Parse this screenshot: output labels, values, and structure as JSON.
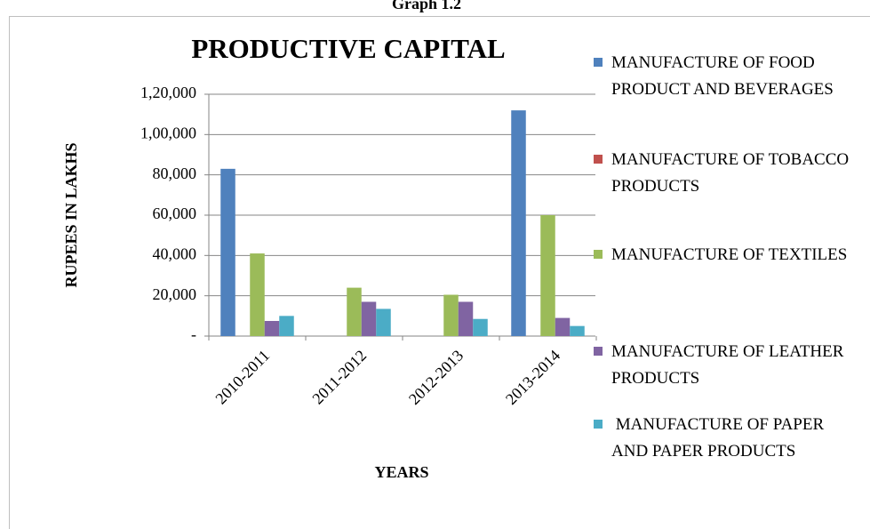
{
  "header": "Graph 1.2",
  "chart_data": {
    "type": "bar",
    "title": "PRODUCTIVE CAPITAL",
    "x_label": "YEARS",
    "y_label": "RUPEES  IN  LAKHS",
    "categories": [
      "2010-2011",
      "2011-2012",
      "2012-2013",
      "2013-2014"
    ],
    "series": [
      {
        "name": "MANUFACTURE OF FOOD PRODUCT AND BEVERAGES",
        "color": "#4f81bd",
        "values": [
          83000,
          0,
          0,
          112000
        ]
      },
      {
        "name": "MANUFACTURE OF TOBACCO PRODUCTS",
        "color": "#c0504d",
        "values": [
          0,
          0,
          0,
          0
        ]
      },
      {
        "name": "MANUFACTURE OF TEXTILES",
        "color": "#9bbb59",
        "values": [
          41000,
          24000,
          20500,
          60000
        ]
      },
      {
        "name": "MANUFACTURE OF LEATHER PRODUCTS",
        "color": "#8064a2",
        "values": [
          7500,
          17000,
          17000,
          9000
        ]
      },
      {
        "name": " MANUFACTURE OF PAPER AND PAPER PRODUCTS",
        "color": "#4bacc6",
        "values": [
          10000,
          13500,
          8500,
          5000
        ]
      }
    ],
    "ylim": [
      0,
      120000
    ],
    "yticks": [
      {
        "value": 0,
        "label": "-"
      },
      {
        "value": 20000,
        "label": "20,000"
      },
      {
        "value": 40000,
        "label": "40,000"
      },
      {
        "value": 60000,
        "label": "60,000"
      },
      {
        "value": 80000,
        "label": "80,000"
      },
      {
        "value": 100000,
        "label": "1,00,000"
      },
      {
        "value": 120000,
        "label": "1,20,000"
      }
    ],
    "grid": true,
    "legend": "right"
  }
}
